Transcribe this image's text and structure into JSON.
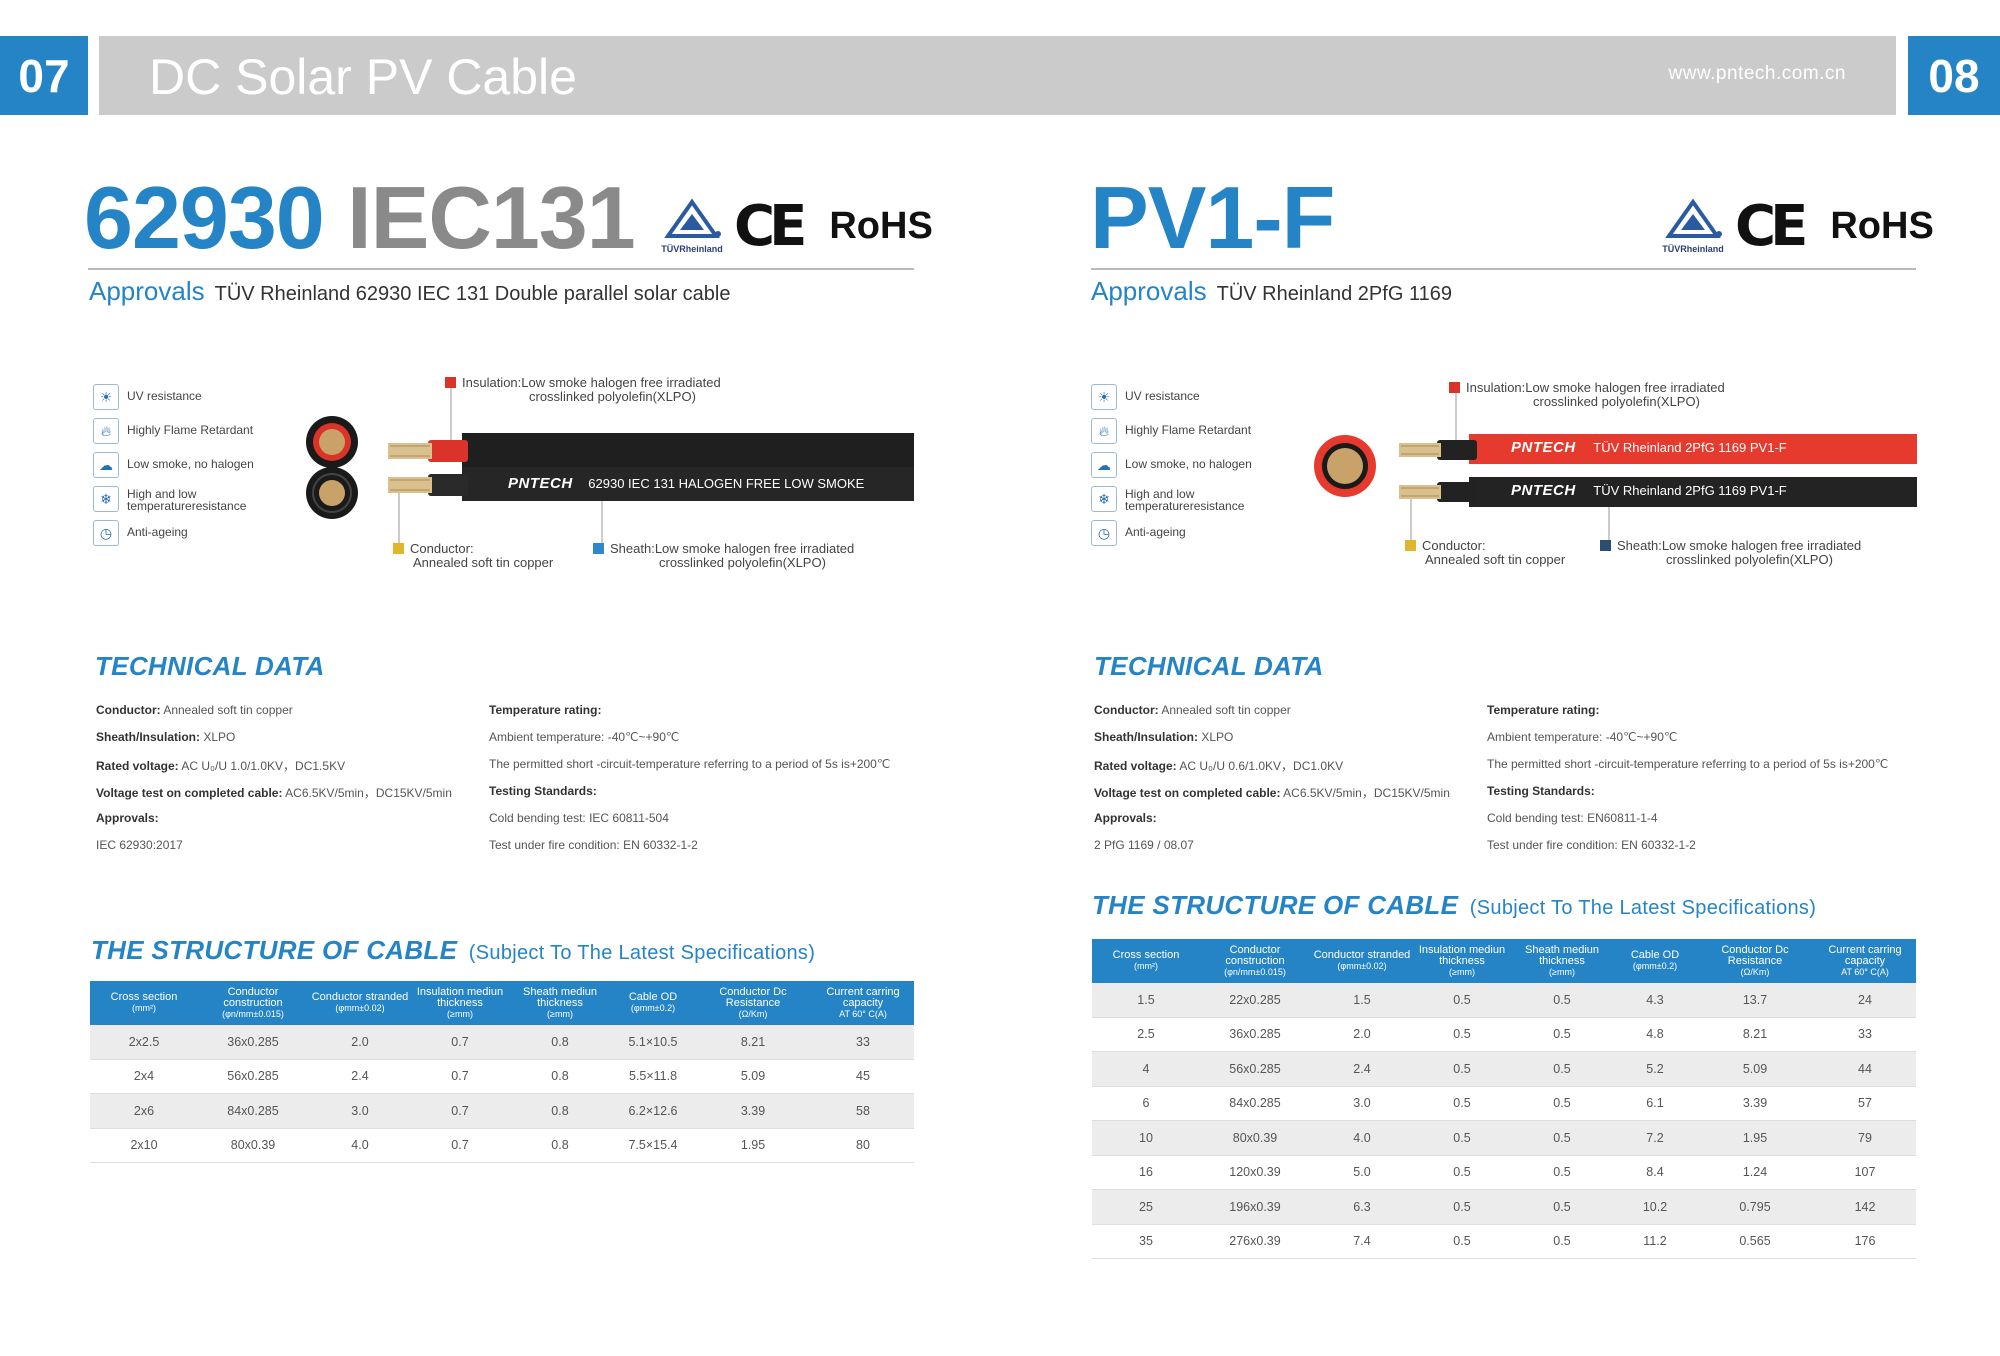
{
  "header": {
    "page_left": "07",
    "page_right": "08",
    "title": "DC Solar PV Cable",
    "url": "www.pntech.com.cn"
  },
  "colors": {
    "brand_blue": "#2584c6",
    "header_gray": "#cbcbcb",
    "red_cable": "#e63a2e"
  },
  "left": {
    "title_part1": "62930",
    "title_part2": "IEC131",
    "cert": {
      "tuv": "TÜVRheinland",
      "ce": "CE",
      "rohs": "RoHS"
    },
    "approvals_label": "Approvals",
    "approvals_text": "TÜV Rheinland 62930 IEC 131  Double parallel solar cable",
    "features": [
      {
        "icon": "uv-icon",
        "label": "UV resistance"
      },
      {
        "icon": "flame-icon",
        "label": "Highly Flame Retardant"
      },
      {
        "icon": "smoke-icon",
        "label": "Low smoke, no halogen"
      },
      {
        "icon": "temperature-icon",
        "label": "High and low temperatureresistance"
      },
      {
        "icon": "clock-icon",
        "label": "Anti-ageing"
      }
    ],
    "diagram": {
      "insulation_line1": "Insulation:Low smoke halogen free irradiated",
      "insulation_line2": "crosslinked polyolefin(XLPO)",
      "conductor_line1": "Conductor:",
      "conductor_line2": "Annealed soft tin copper",
      "sheath_line1": "Sheath:Low smoke halogen free irradiated",
      "sheath_line2": "crosslinked polyolefin(XLPO)",
      "brand": "PNTECH",
      "print": "62930 IEC 131  HALOGEN FREE LOW SMOKE"
    },
    "technical_title": "TECHNICAL DATA",
    "tech_left": [
      {
        "label": "Conductor:",
        "value": " Annealed soft tin copper"
      },
      {
        "label": "Sheath/Insulation:",
        "value": " XLPO"
      },
      {
        "label": "Rated voltage:",
        "value": " AC U₀/U 1.0/1.0KV，DC1.5KV"
      },
      {
        "label": "Voltage test on completed cable:",
        "value": " AC6.5KV/5min，DC15KV/5min"
      },
      {
        "label": "Approvals:",
        "value": ""
      },
      {
        "label": "",
        "value": "IEC 62930:2017"
      }
    ],
    "tech_right": [
      {
        "label": "Temperature rating:",
        "value": ""
      },
      {
        "label": "",
        "value": "Ambient temperature: -40℃~+90℃"
      },
      {
        "label": "",
        "value": "The permitted short -circuit-temperature referring to a period of 5s is+200℃"
      },
      {
        "label": "Testing Standards:",
        "value": ""
      },
      {
        "label": "",
        "value": "Cold bending test: IEC 60811-504"
      },
      {
        "label": "",
        "value": "Test under fire condition: EN 60332-1-2"
      }
    ],
    "structure_title": "THE STRUCTURE OF CABLE",
    "structure_sub": "(Subject To The Latest Specifications)",
    "table": {
      "rows": [
        [
          "2x2.5",
          "36x0.285",
          "2.0",
          "0.7",
          "0.8",
          "5.1×10.5",
          "8.21",
          "33"
        ],
        [
          "2x4",
          "56x0.285",
          "2.4",
          "0.7",
          "0.8",
          "5.5×11.8",
          "5.09",
          "45"
        ],
        [
          "2x6",
          "84x0.285",
          "3.0",
          "0.7",
          "0.8",
          "6.2×12.6",
          "3.39",
          "58"
        ],
        [
          "2x10",
          "80x0.39",
          "4.0",
          "0.7",
          "0.8",
          "7.5×15.4",
          "1.95",
          "80"
        ]
      ]
    }
  },
  "right": {
    "title": "PV1-F",
    "cert": {
      "tuv": "TÜVRheinland",
      "ce": "CE",
      "rohs": "RoHS"
    },
    "approvals_label": "Approvals",
    "approvals_text": "TÜV Rheinland 2PfG 1169",
    "features": [
      {
        "icon": "uv-icon",
        "label": "UV resistance"
      },
      {
        "icon": "flame-icon",
        "label": "Highly Flame Retardant"
      },
      {
        "icon": "smoke-icon",
        "label": "Low smoke, no halogen"
      },
      {
        "icon": "temperature-icon",
        "label": "High and low temperatureresistance"
      },
      {
        "icon": "clock-icon",
        "label": "Anti-ageing"
      }
    ],
    "diagram": {
      "insulation_line1": "Insulation:Low smoke halogen free irradiated",
      "insulation_line2": "crosslinked polyolefin(XLPO)",
      "conductor_line1": "Conductor:",
      "conductor_line2": "Annealed soft tin copper",
      "sheath_line1": "Sheath:Low smoke halogen free irradiated",
      "sheath_line2": "crosslinked polyolefin(XLPO)",
      "brand": "PNTECH",
      "print_red": "TÜV Rheinland 2PfG 1169 PV1-F",
      "print_black": "TÜV Rheinland 2PfG 1169 PV1-F"
    },
    "technical_title": "TECHNICAL DATA",
    "tech_left": [
      {
        "label": "Conductor:",
        "value": " Annealed soft tin copper"
      },
      {
        "label": "Sheath/Insulation:",
        "value": " XLPO"
      },
      {
        "label": "Rated voltage:",
        "value": " AC U₀/U 0.6/1.0KV，DC1.0KV"
      },
      {
        "label": "Voltage test on completed cable:",
        "value": " AC6.5KV/5min，DC15KV/5min"
      },
      {
        "label": "Approvals:",
        "value": ""
      },
      {
        "label": "",
        "value": "2 PfG 1169 / 08.07"
      }
    ],
    "tech_right": [
      {
        "label": "Temperature rating:",
        "value": ""
      },
      {
        "label": "",
        "value": "Ambient temperature: -40℃~+90℃"
      },
      {
        "label": "",
        "value": "The permitted short -circuit-temperature referring to a period of 5s is+200℃"
      },
      {
        "label": "Testing Standards:",
        "value": ""
      },
      {
        "label": "",
        "value": "Cold bending test: EN60811-1-4"
      },
      {
        "label": "",
        "value": "Test under fire condition: EN 60332-1-2"
      }
    ],
    "structure_title": "THE STRUCTURE OF CABLE",
    "structure_sub": "(Subject To The Latest Specifications)",
    "table": {
      "rows": [
        [
          "1.5",
          "22x0.285",
          "1.5",
          "0.5",
          "0.5",
          "4.3",
          "13.7",
          "24"
        ],
        [
          "2.5",
          "36x0.285",
          "2.0",
          "0.5",
          "0.5",
          "4.8",
          "8.21",
          "33"
        ],
        [
          "4",
          "56x0.285",
          "2.4",
          "0.5",
          "0.5",
          "5.2",
          "5.09",
          "44"
        ],
        [
          "6",
          "84x0.285",
          "3.0",
          "0.5",
          "0.5",
          "6.1",
          "3.39",
          "57"
        ],
        [
          "10",
          "80x0.39",
          "4.0",
          "0.5",
          "0.5",
          "7.2",
          "1.95",
          "79"
        ],
        [
          "16",
          "120x0.39",
          "5.0",
          "0.5",
          "0.5",
          "8.4",
          "1.24",
          "107"
        ],
        [
          "25",
          "196x0.39",
          "6.3",
          "0.5",
          "0.5",
          "10.2",
          "0.795",
          "142"
        ],
        [
          "35",
          "276x0.39",
          "7.4",
          "0.5",
          "0.5",
          "11.2",
          "0.565",
          "176"
        ]
      ]
    }
  },
  "table_headers": [
    {
      "line1": "Cross section",
      "unit": "(mm²)"
    },
    {
      "line1": "Conductor construction",
      "unit": "(φn/mm±0.015)"
    },
    {
      "line1": "Conductor stranded",
      "unit": "(φmm±0.02)"
    },
    {
      "line1": "Insulation mediun thickness",
      "unit": "(≥mm)"
    },
    {
      "line1": "Sheath mediun thickness",
      "unit": "(≥mm)"
    },
    {
      "line1": "Cable OD",
      "unit": "(φmm±0.2)"
    },
    {
      "line1": "Conductor Dc Resistance",
      "unit": "(Ω/Km)"
    },
    {
      "line1": "Current carring capacity",
      "unit": "AT 60° C(A)"
    }
  ]
}
